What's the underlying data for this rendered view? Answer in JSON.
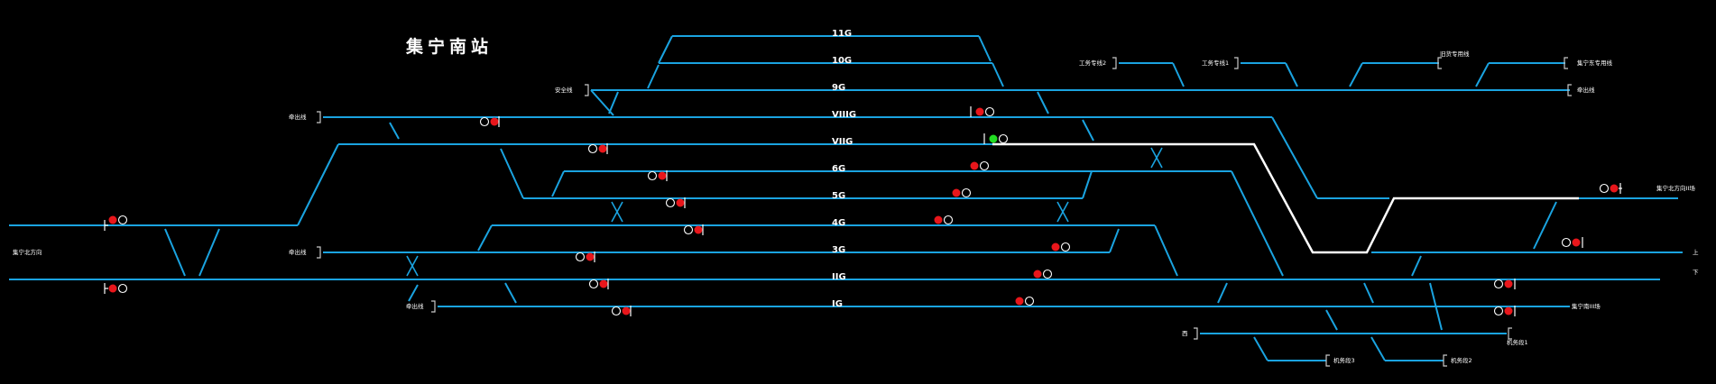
{
  "station": {
    "name": "集宁南站"
  },
  "colors": {
    "track": "#1aa3e0",
    "route": "#ffffff",
    "signal_red": "#e8161b",
    "signal_green": "#22dd22",
    "background": "#000000"
  },
  "tracks": {
    "t11g": "11G",
    "t10g": "10G",
    "t9g": "9G",
    "t8g": "VIIIG",
    "t7g": "VIIG",
    "t6g": "6G",
    "t5g": "5G",
    "t4g": "4G",
    "t3g": "3G",
    "t2g": "IIG",
    "t1g": "IG"
  },
  "labels": {
    "anquan": "安全线",
    "qianchu_top": "牵出线",
    "qianchu_mid": "牵出线",
    "qianchu_bot": "牵出线",
    "west_line": "集宁北方向",
    "gongwu2": "工务专线2",
    "gongwu1": "工务专线1",
    "laosong": "旧货专用线",
    "dongfang": "集宁东专用线",
    "qiaoxian": "牵出线",
    "jiningbei_r": "集宁北方向II场",
    "up": "上",
    "down": "下",
    "jiningnan": "集宁南III场",
    "xi": "西",
    "jiwu1": "机务段1",
    "jiwu3": "机务段3",
    "jiwu2": "机务段2"
  },
  "signal_states": {
    "vii_east": "green"
  }
}
